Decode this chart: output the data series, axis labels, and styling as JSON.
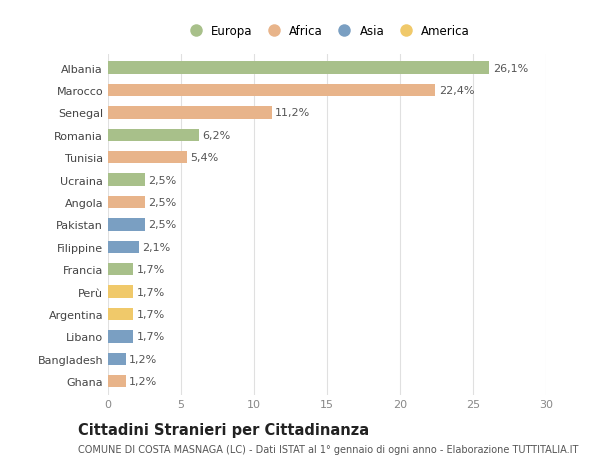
{
  "categories": [
    "Albania",
    "Marocco",
    "Senegal",
    "Romania",
    "Tunisia",
    "Ucraina",
    "Angola",
    "Pakistan",
    "Filippine",
    "Francia",
    "Perù",
    "Argentina",
    "Libano",
    "Bangladesh",
    "Ghana"
  ],
  "values": [
    26.1,
    22.4,
    11.2,
    6.2,
    5.4,
    2.5,
    2.5,
    2.5,
    2.1,
    1.7,
    1.7,
    1.7,
    1.7,
    1.2,
    1.2
  ],
  "labels": [
    "26,1%",
    "22,4%",
    "11,2%",
    "6,2%",
    "5,4%",
    "2,5%",
    "2,5%",
    "2,5%",
    "2,1%",
    "1,7%",
    "1,7%",
    "1,7%",
    "1,7%",
    "1,2%",
    "1,2%"
  ],
  "continents": [
    "Europa",
    "Africa",
    "Africa",
    "Europa",
    "Africa",
    "Europa",
    "Africa",
    "Asia",
    "Asia",
    "Europa",
    "America",
    "America",
    "Asia",
    "Asia",
    "Africa"
  ],
  "continent_colors": {
    "Europa": "#a8c08a",
    "Africa": "#e8b48a",
    "Asia": "#7a9fc2",
    "America": "#f0c96a"
  },
  "legend_order": [
    "Europa",
    "Africa",
    "Asia",
    "America"
  ],
  "title": "Cittadini Stranieri per Cittadinanza",
  "subtitle": "COMUNE DI COSTA MASNAGA (LC) - Dati ISTAT al 1° gennaio di ogni anno - Elaborazione TUTTITALIA.IT",
  "xlim": [
    0,
    30
  ],
  "xticks": [
    0,
    5,
    10,
    15,
    20,
    25,
    30
  ],
  "bar_height": 0.55,
  "background_color": "#ffffff",
  "grid_color": "#e0e0e0",
  "label_fontsize": 8.0,
  "tick_fontsize": 8.0,
  "title_fontsize": 10.5,
  "subtitle_fontsize": 7.0,
  "legend_fontsize": 8.5
}
